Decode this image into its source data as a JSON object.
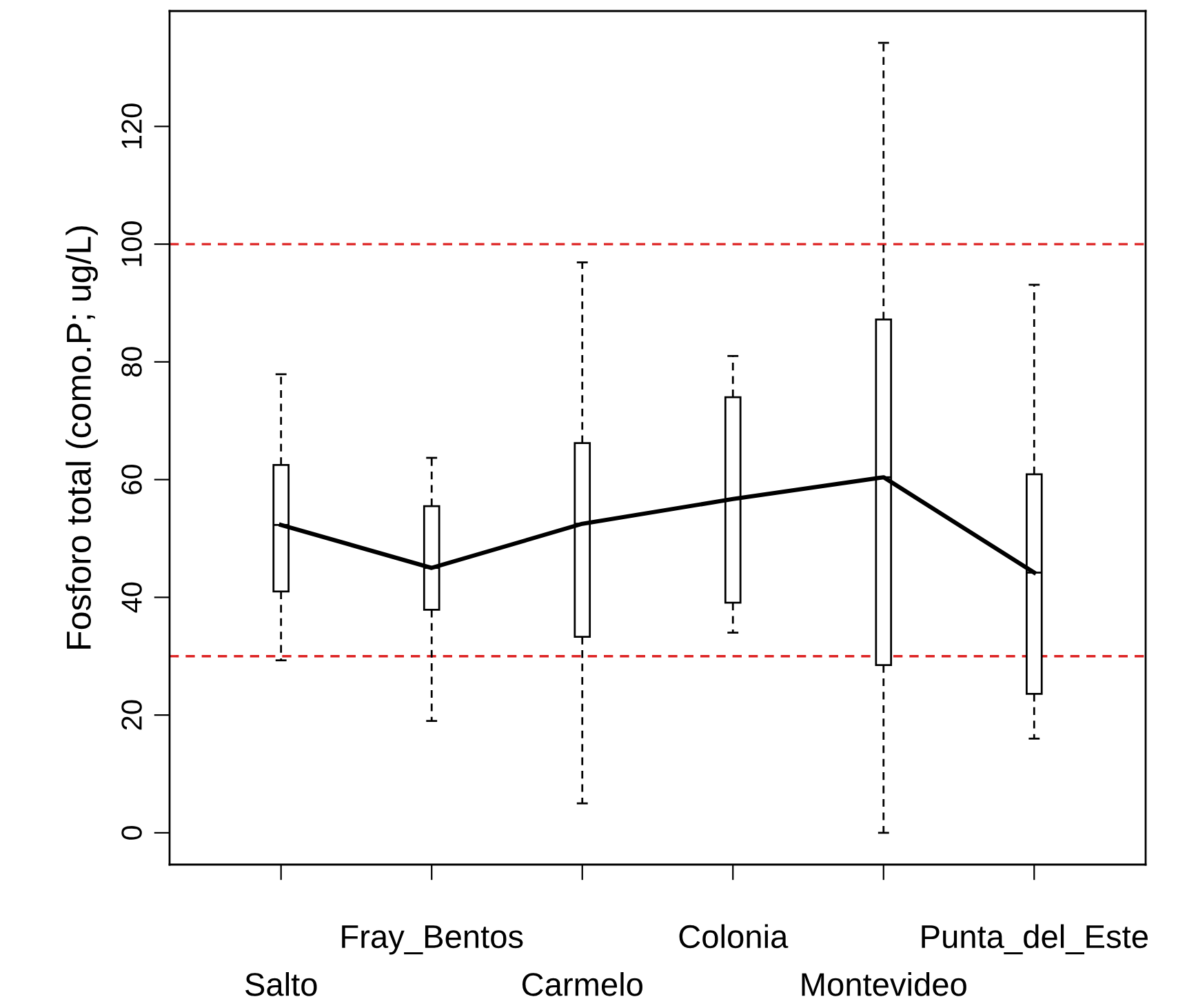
{
  "chart_data": {
    "type": "box",
    "ylabel": "Fosforo total (como.P; ug/L)",
    "categories": [
      "Salto",
      "Fray_Bentos",
      "Carmelo",
      "Colonia",
      "Montevideo",
      "Punta_del_Este"
    ],
    "boxes": [
      {
        "low": 29.3,
        "q1": 41.0,
        "median": 52.3,
        "q3": 62.5,
        "high": 77.9
      },
      {
        "low": 19.0,
        "q1": 37.9,
        "median": 45.0,
        "q3": 55.5,
        "high": 63.7
      },
      {
        "low": 5.0,
        "q1": 33.3,
        "median": 52.5,
        "q3": 66.2,
        "high": 96.9
      },
      {
        "low": 34.0,
        "q1": 39.1,
        "median": 56.7,
        "q3": 74.0,
        "high": 81.0
      },
      {
        "low": 0.0,
        "q1": 28.5,
        "median": 60.4,
        "q3": 87.2,
        "high": 134.2
      },
      {
        "low": 16.0,
        "q1": 23.6,
        "median": 44.2,
        "q3": 60.9,
        "high": 93.1
      }
    ],
    "series": [
      {
        "type": "line",
        "color": "#000000",
        "values": [
          52.3,
          45.0,
          52.5,
          56.7,
          60.4,
          44.2
        ]
      }
    ],
    "ylim": [
      -5.4,
      139.6
    ],
    "yticks": [
      0,
      20,
      40,
      60,
      80,
      100,
      120
    ],
    "ref_lines": [
      {
        "axis": "y",
        "value": 100,
        "color": "#dd2222",
        "line_style": "dashed"
      },
      {
        "axis": "y",
        "value": 30,
        "color": "#dd2222",
        "line_style": "dashed"
      }
    ],
    "grid": false,
    "legend": false
  }
}
